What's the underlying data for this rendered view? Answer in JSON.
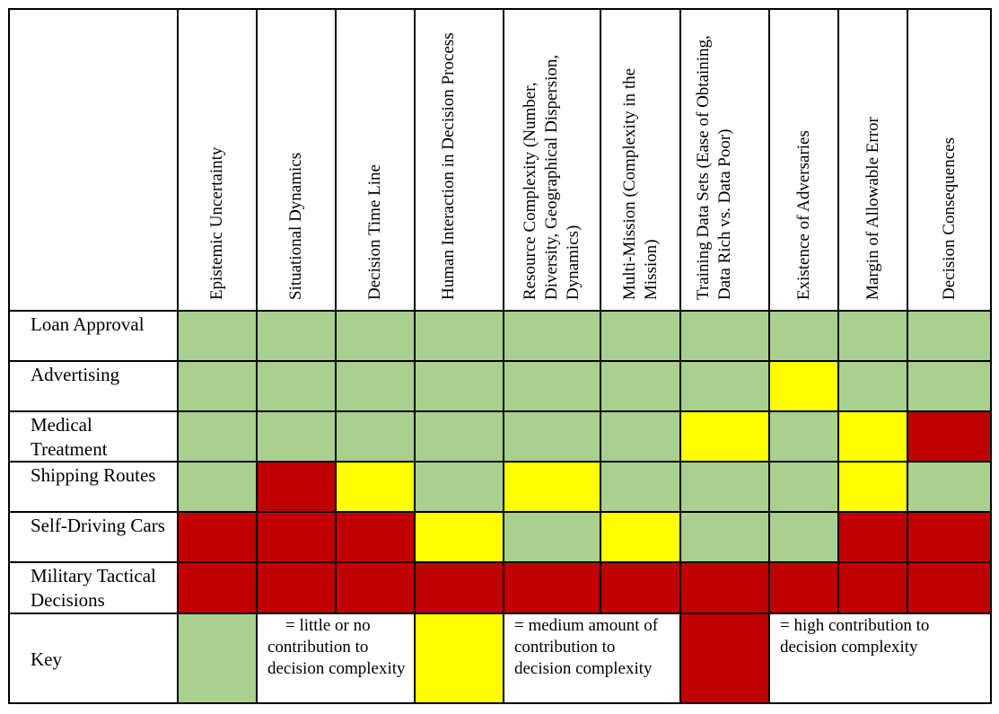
{
  "colors": {
    "green": "#a9d08e",
    "yellow": "#ffff00",
    "red": "#c00000"
  },
  "table": {
    "columns": [
      "Epistemic Uncertainty",
      "Situational Dynamics",
      "Decision Time Line",
      "Human Interaction in Decision Process",
      "Resource Complexity (Number, Diversity, Geographical Dispersion, Dynamics)",
      "Multi-Mission (Complexity in the Mission)",
      "Training Data Sets (Ease of Obtaining, Data Rich vs. Data Poor)",
      "Existence of Adversaries",
      "Margin of Allowable Error",
      "Decision Consequences"
    ],
    "rows": [
      {
        "label": "Loan Approval",
        "levels": [
          "green",
          "green",
          "green",
          "green",
          "green",
          "green",
          "green",
          "green",
          "green",
          "green"
        ]
      },
      {
        "label": "Advertising",
        "levels": [
          "green",
          "green",
          "green",
          "green",
          "green",
          "green",
          "green",
          "yellow",
          "green",
          "green"
        ]
      },
      {
        "label": "Medical Treatment",
        "levels": [
          "green",
          "green",
          "green",
          "green",
          "green",
          "green",
          "yellow",
          "green",
          "yellow",
          "red"
        ]
      },
      {
        "label": "Shipping Routes",
        "levels": [
          "green",
          "red",
          "yellow",
          "green",
          "yellow",
          "green",
          "green",
          "green",
          "yellow",
          "green"
        ]
      },
      {
        "label": "Self-Driving Cars",
        "levels": [
          "red",
          "red",
          "red",
          "yellow",
          "green",
          "yellow",
          "green",
          "green",
          "red",
          "red"
        ]
      },
      {
        "label": "Military Tactical Decisions",
        "levels": [
          "red",
          "red",
          "red",
          "red",
          "red",
          "red",
          "red",
          "red",
          "red",
          "red"
        ]
      }
    ]
  },
  "key": {
    "label": "Key",
    "green_text": "= little or no contribution to decision complexity",
    "yellow_text": "= medium amount of contribution to decision complexity",
    "red_text": "= high contribution to decision complexity"
  }
}
